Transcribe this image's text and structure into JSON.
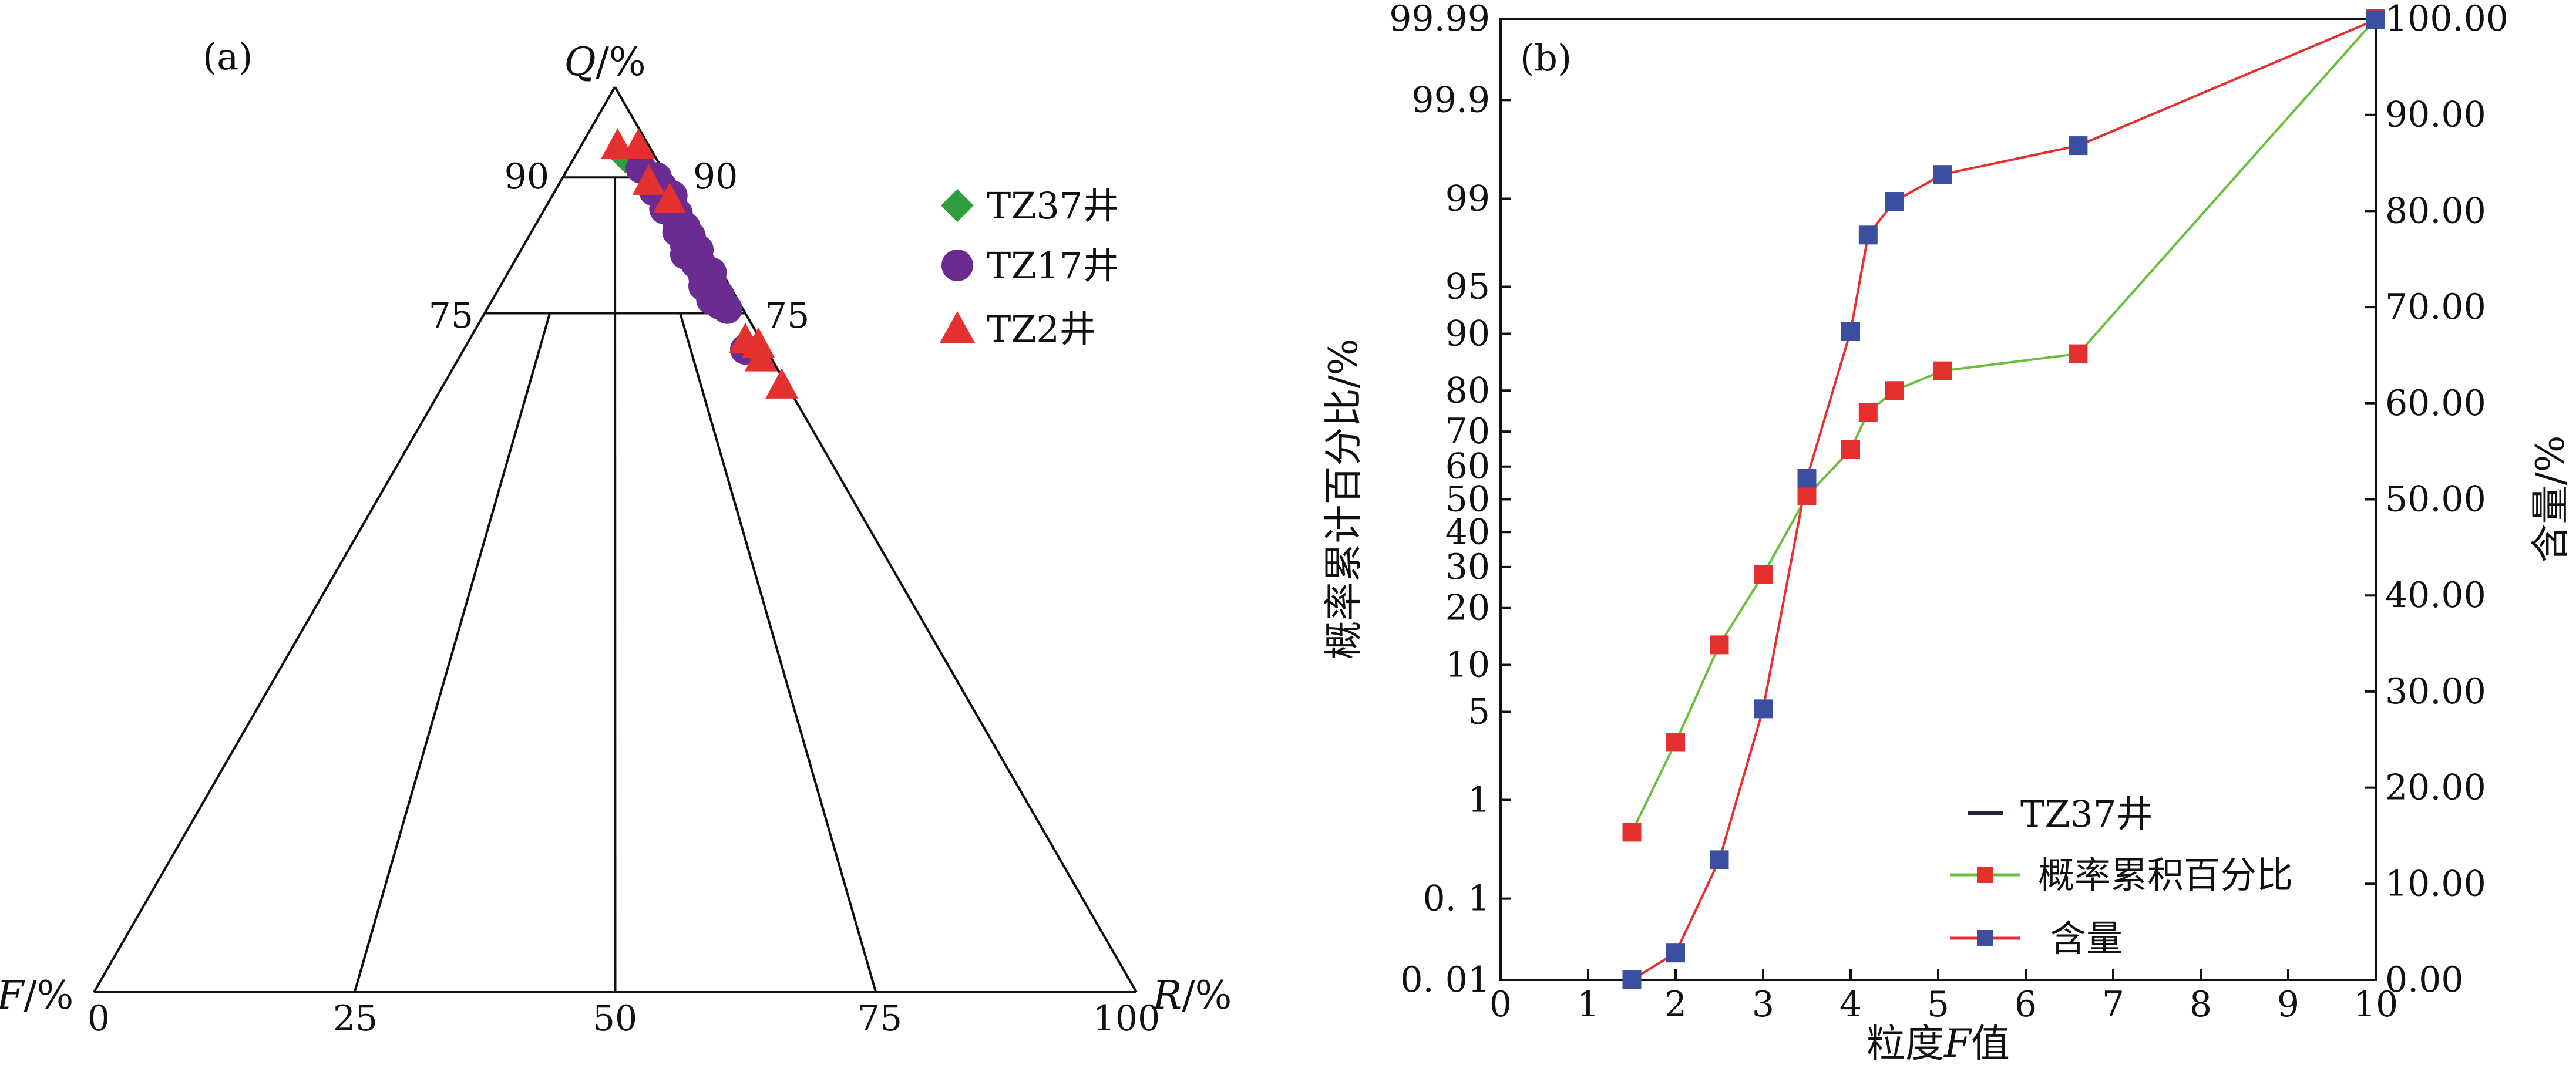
{
  "chart_data": [
    {
      "type": "scatter",
      "subtype": "ternary",
      "panel_label": "(a)",
      "apex_labels": {
        "top": "Q/%",
        "left": "F/%",
        "right": "R/%"
      },
      "apex_label_parts": {
        "top": {
          "var": "Q",
          "unit": "/%"
        },
        "left": {
          "var": "F",
          "unit": "/%"
        },
        "right": {
          "var": "R",
          "unit": "/%"
        }
      },
      "side_ticks": {
        "left": [
          "75",
          "90"
        ],
        "right": [
          "75",
          "90"
        ]
      },
      "base_ticks": [
        "0",
        "25",
        "50",
        "75",
        "100"
      ],
      "legend_position": "top-right",
      "series": [
        {
          "name": "TZ37井",
          "marker": "diamond",
          "color": "#2e9e3e",
          "points": [
            [
              92,
              3,
              5
            ],
            [
              89.5,
              1.5,
              9
            ],
            [
              88,
              2,
              10
            ]
          ]
        },
        {
          "name": "TZ17井",
          "marker": "circle",
          "color": "#6b2c91",
          "points": [
            [
              91,
              2,
              7
            ],
            [
              90,
              1,
              9
            ],
            [
              89,
              1,
              10
            ],
            [
              88.5,
              2,
              9.5
            ],
            [
              88,
              0.5,
              11.5
            ],
            [
              87.5,
              1.5,
              11
            ],
            [
              87,
              1,
              12
            ],
            [
              86.5,
              2,
              11.5
            ],
            [
              86,
              1,
              13
            ],
            [
              85,
              1.5,
              13.5
            ],
            [
              84.5,
              1,
              14.5
            ],
            [
              84,
              2,
              14
            ],
            [
              83.5,
              1,
              15.5
            ],
            [
              83,
              1.5,
              15.5
            ],
            [
              82.5,
              2,
              15.5
            ],
            [
              82,
              1,
              17
            ],
            [
              81.5,
              2.5,
              16
            ],
            [
              81,
              1.5,
              17.5
            ],
            [
              80.5,
              2,
              17.5
            ],
            [
              80,
              1.5,
              18.5
            ],
            [
              79.5,
              1,
              19.5
            ],
            [
              79,
              2,
              19
            ],
            [
              78.5,
              1.5,
              20
            ],
            [
              78,
              2.5,
              19.5
            ],
            [
              77.5,
              2,
              20.5
            ],
            [
              77,
              1.5,
              21.5
            ],
            [
              76.5,
              2.5,
              21
            ],
            [
              76,
              2,
              22
            ],
            [
              75.5,
              1.5,
              23
            ],
            [
              71,
              2,
              27
            ]
          ]
        },
        {
          "name": "TZ2井",
          "marker": "triangle",
          "color": "#e53030",
          "points": [
            [
              93.5,
              1,
              5.5
            ],
            [
              93.5,
              3,
              3.5
            ],
            [
              89.5,
              2,
              8.5
            ],
            [
              87.5,
              1,
              11.5
            ],
            [
              72,
              1.5,
              26.5
            ],
            [
              71.5,
              0.5,
              28
            ],
            [
              70,
              1,
              29
            ],
            [
              67,
              0.5,
              32.5
            ]
          ]
        }
      ]
    },
    {
      "type": "line",
      "panel_label": "(b)",
      "xlabel": "粒度F值",
      "xlabel_parts": {
        "before": "粒度",
        "var": "F",
        "after": "值"
      },
      "ylabel": "概率累计百分比/%",
      "y2label": "含量/%",
      "x_ticks": [
        "0",
        "1",
        "2",
        "3",
        "4",
        "5",
        "6",
        "7",
        "8",
        "9",
        "10"
      ],
      "xlim": [
        0,
        10
      ],
      "y_scale": "probability",
      "y_ticks": [
        "0. 01",
        "0. 1",
        "1",
        "5",
        "10",
        "20",
        "30",
        "40",
        "50",
        "60",
        "70",
        "80",
        "90",
        "95",
        "99",
        "99.9",
        "99.99"
      ],
      "y_tick_values": [
        0.01,
        0.1,
        1,
        5,
        10,
        20,
        30,
        40,
        50,
        60,
        70,
        80,
        90,
        95,
        99,
        99.9,
        99.99
      ],
      "y2_ticks": [
        "0.00",
        "10.00",
        "20.00",
        "30.00",
        "40.00",
        "50.00",
        "60.00",
        "70.00",
        "80.00",
        "90.00",
        "100.00"
      ],
      "y2lim": [
        0,
        100
      ],
      "legend_position": "bottom-right",
      "legend": [
        {
          "name": "TZ37井",
          "style": "line",
          "color": "#2a1f3d"
        },
        {
          "name": "概率累积百分比",
          "style": "line-marker",
          "color": "#6abf3a",
          "marker_color": "#e53030"
        },
        {
          "name": "含量",
          "style": "line-marker",
          "color": "#e53030",
          "marker_color": "#3a4fa0"
        }
      ],
      "series": [
        {
          "name": "概率累积百分比",
          "axis": "left",
          "line_color": "#6abf3a",
          "marker_color": "#e53030",
          "x": [
            1.5,
            2.0,
            2.5,
            3.0,
            3.5,
            4.0,
            4.2,
            4.5,
            5.05,
            6.6,
            10.0
          ],
          "y": [
            0.5,
            3,
            13,
            28,
            51,
            65,
            75,
            80,
            84,
            87,
            99.99
          ]
        },
        {
          "name": "含量",
          "axis": "right",
          "line_color": "#e53030",
          "marker_color": "#3a4fa0",
          "x": [
            1.5,
            2.0,
            2.5,
            3.0,
            3.5,
            4.0,
            4.2,
            4.5,
            5.05,
            6.6,
            10.0
          ],
          "y": [
            0.0,
            2.8,
            12.5,
            28.2,
            52.2,
            67.5,
            77.5,
            81.0,
            83.8,
            86.8,
            99.9
          ]
        }
      ]
    }
  ]
}
